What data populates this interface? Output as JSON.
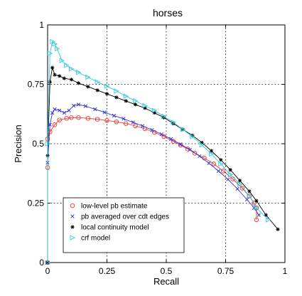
{
  "chart_data": {
    "type": "line",
    "title": "horses",
    "xlabel": "Recall",
    "ylabel": "Precision",
    "xlim": [
      0,
      1
    ],
    "ylim": [
      0,
      1
    ],
    "grid": true,
    "legend_position": "bottom-left",
    "xticks": [
      "0",
      "0.25",
      "0.5",
      "0.75",
      "1"
    ],
    "yticks": [
      "0",
      "0.25",
      "0.5",
      "0.75",
      "1"
    ],
    "series": [
      {
        "name": "low-level pb estimate",
        "color": "#e8372c",
        "marker": "circle",
        "x": [
          0.0,
          0.0,
          0.0,
          0.01,
          0.03,
          0.05,
          0.08,
          0.1,
          0.13,
          0.17,
          0.21,
          0.25,
          0.29,
          0.33,
          0.37,
          0.41,
          0.45,
          0.49,
          0.53,
          0.56,
          0.59,
          0.62,
          0.66,
          0.7,
          0.74,
          0.78,
          0.82,
          0.85,
          0.87,
          0.88,
          0.88
        ],
        "y": [
          0.0,
          0.4,
          0.52,
          0.55,
          0.58,
          0.6,
          0.607,
          0.61,
          0.61,
          0.607,
          0.603,
          0.598,
          0.592,
          0.585,
          0.575,
          0.563,
          0.548,
          0.53,
          0.51,
          0.494,
          0.478,
          0.46,
          0.44,
          0.415,
          0.385,
          0.352,
          0.313,
          0.28,
          0.25,
          0.23,
          0.18
        ]
      },
      {
        "name": "pb averaged over cdt edges",
        "color": "#3535d6",
        "marker": "x",
        "x": [
          0.0,
          0.0,
          0.01,
          0.02,
          0.03,
          0.05,
          0.07,
          0.09,
          0.11,
          0.13,
          0.16,
          0.2,
          0.24,
          0.28,
          0.32,
          0.36,
          0.4,
          0.44,
          0.48,
          0.52,
          0.56,
          0.6,
          0.64,
          0.68,
          0.72,
          0.76,
          0.8,
          0.84,
          0.87,
          0.89
        ],
        "y": [
          0.0,
          0.42,
          0.58,
          0.63,
          0.645,
          0.64,
          0.63,
          0.64,
          0.66,
          0.665,
          0.658,
          0.645,
          0.632,
          0.618,
          0.605,
          0.59,
          0.575,
          0.558,
          0.54,
          0.52,
          0.498,
          0.475,
          0.448,
          0.418,
          0.385,
          0.35,
          0.31,
          0.265,
          0.23,
          0.2
        ]
      },
      {
        "name": "local continuity model",
        "color": "#000000",
        "marker": "star",
        "x": [
          0.0,
          0.0,
          0.01,
          0.02,
          0.03,
          0.05,
          0.07,
          0.1,
          0.13,
          0.17,
          0.21,
          0.25,
          0.29,
          0.33,
          0.37,
          0.41,
          0.45,
          0.49,
          0.53,
          0.57,
          0.61,
          0.65,
          0.69,
          0.73,
          0.77,
          0.81,
          0.85,
          0.88,
          0.92,
          0.97
        ],
        "y": [
          0.0,
          0.45,
          0.76,
          0.82,
          0.79,
          0.785,
          0.775,
          0.77,
          0.755,
          0.74,
          0.725,
          0.71,
          0.695,
          0.68,
          0.665,
          0.65,
          0.63,
          0.61,
          0.585,
          0.56,
          0.535,
          0.505,
          0.47,
          0.432,
          0.39,
          0.345,
          0.3,
          0.26,
          0.2,
          0.14
        ]
      },
      {
        "name": "crf model",
        "color": "#35c8dc",
        "marker": "triangle-right",
        "x": [
          0.0,
          0.0,
          0.01,
          0.02,
          0.03,
          0.04,
          0.06,
          0.08,
          0.1,
          0.13,
          0.17,
          0.21,
          0.25,
          0.29,
          0.33,
          0.37,
          0.41,
          0.45,
          0.49,
          0.53,
          0.57,
          0.61,
          0.65,
          0.69,
          0.73,
          0.77,
          0.81,
          0.85,
          0.88,
          0.93
        ],
        "y": [
          0.0,
          0.5,
          0.88,
          0.93,
          0.92,
          0.9,
          0.85,
          0.83,
          0.815,
          0.8,
          0.78,
          0.76,
          0.742,
          0.722,
          0.7,
          0.68,
          0.66,
          0.64,
          0.615,
          0.59,
          0.56,
          0.53,
          0.495,
          0.457,
          0.415,
          0.37,
          0.33,
          0.28,
          0.23,
          0.18
        ]
      }
    ]
  }
}
